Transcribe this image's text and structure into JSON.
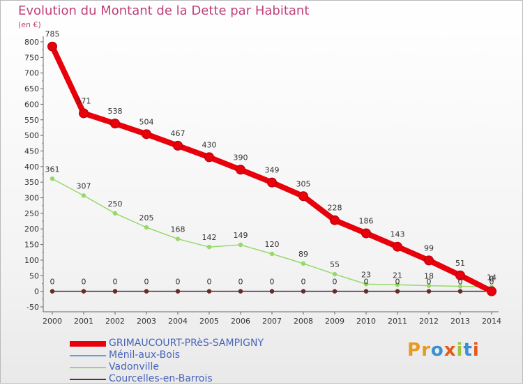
{
  "title": "Evolution du Montant de la Dette par Habitant",
  "unit_label": "(en €)",
  "brand": {
    "text": "Proxiti",
    "letters": [
      "P",
      "r",
      "o",
      "x",
      "i",
      "t",
      "i"
    ],
    "letter_colors": [
      "#e89a1e",
      "#e89a1e",
      "#3b8fd4",
      "#e8581a",
      "#9dc43a",
      "#3b8fd4",
      "#e8581a"
    ]
  },
  "chart_data": {
    "type": "line",
    "title": "Evolution du Montant de la Dette par Habitant",
    "ylabel": "(en €)",
    "xlabel": "",
    "x": [
      2000,
      2001,
      2002,
      2003,
      2004,
      2005,
      2006,
      2007,
      2008,
      2009,
      2010,
      2011,
      2012,
      2013,
      2014
    ],
    "ylim": [
      -50,
      800
    ],
    "yticks": [
      -50,
      0,
      50,
      100,
      150,
      200,
      250,
      300,
      350,
      400,
      450,
      500,
      550,
      600,
      650,
      700,
      750,
      800
    ],
    "grid": false,
    "legend_position": "bottom-left",
    "series": [
      {
        "name": "GRIMAUCOURT-PRèS-SAMPIGNY",
        "color": "#e8000b",
        "values": [
          785,
          571,
          538,
          504,
          467,
          430,
          390,
          349,
          305,
          228,
          186,
          143,
          99,
          51,
          0
        ],
        "labels": [
          "785",
          "571",
          "538",
          "504",
          "467",
          "430",
          "390",
          "349",
          "305",
          "228",
          "186",
          "143",
          "99",
          "51",
          "0"
        ]
      },
      {
        "name": "Ménil-aux-Bois",
        "color": "#6f9cd0",
        "values": [
          0,
          0,
          0,
          0,
          0,
          0,
          0,
          0,
          0,
          0,
          0,
          0,
          0,
          0,
          0
        ],
        "labels": []
      },
      {
        "name": "Vadonville",
        "color": "#97d86a",
        "values": [
          361,
          307,
          250,
          205,
          168,
          142,
          149,
          120,
          89,
          55,
          23,
          21,
          18,
          16,
          14
        ],
        "labels": [
          "361",
          "307",
          "250",
          "205",
          "168",
          "142",
          "149",
          "120",
          "89",
          "55",
          "23",
          "21",
          "18",
          "",
          "14"
        ]
      },
      {
        "name": "Courcelles-en-Barrois",
        "color": "#6b2a2a",
        "values": [
          0,
          0,
          0,
          0,
          0,
          0,
          0,
          0,
          0,
          0,
          0,
          0,
          0,
          0,
          0
        ],
        "labels": [
          "0",
          "0",
          "0",
          "0",
          "0",
          "0",
          "0",
          "0",
          "0",
          "0",
          "0",
          "0",
          "0",
          "0",
          "0"
        ]
      }
    ]
  }
}
